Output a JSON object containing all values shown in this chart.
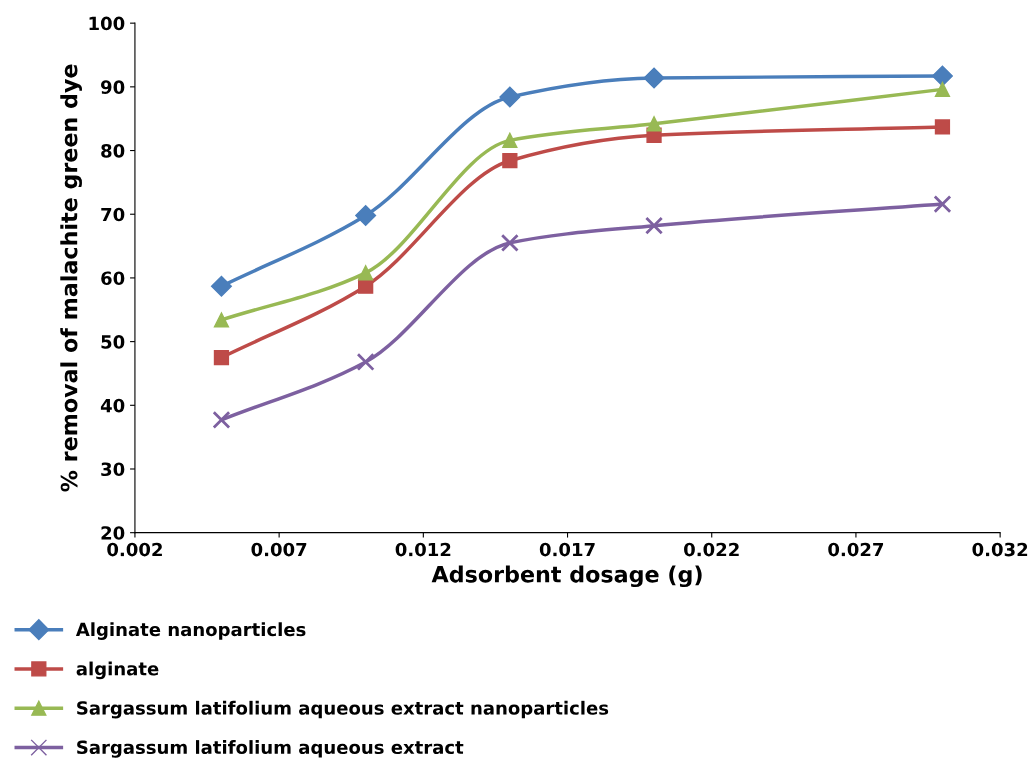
{
  "chart_data": {
    "type": "line",
    "xlabel": "Adsorbent dosage (g)",
    "ylabel": "% removal of malachite green dye",
    "x": [
      0.005,
      0.01,
      0.015,
      0.02,
      0.03
    ],
    "xlim": [
      0.002,
      0.032
    ],
    "xticks": [
      {
        "value": 0.002,
        "label": "0.002"
      },
      {
        "value": 0.007,
        "label": "0.007"
      },
      {
        "value": 0.012,
        "label": "0.012"
      },
      {
        "value": 0.017,
        "label": "0.017"
      },
      {
        "value": 0.022,
        "label": "0.022"
      },
      {
        "value": 0.027,
        "label": "0.027"
      },
      {
        "value": 0.032,
        "label": "0.032"
      }
    ],
    "ylim": [
      20,
      100
    ],
    "yticks": [
      20,
      30,
      40,
      50,
      60,
      70,
      80,
      90,
      100
    ],
    "legend": "bottom",
    "grid": false,
    "series": [
      {
        "name": "Alginate nanoparticles",
        "color": "#4a7ebb",
        "marker": "diamond",
        "values": [
          58.7,
          69.8,
          88.4,
          91.4,
          91.7
        ]
      },
      {
        "name": "alginate",
        "color": "#be4b48",
        "marker": "square",
        "values": [
          47.5,
          58.7,
          78.4,
          82.4,
          83.7
        ]
      },
      {
        "name": "Sargassum latifolium aqueous extract nanoparticles",
        "color": "#98b954",
        "marker": "triangle",
        "values": [
          53.4,
          60.8,
          81.6,
          84.2,
          89.6
        ]
      },
      {
        "name": "Sargassum latifolium aqueous extract",
        "color": "#7d60a0",
        "marker": "cross",
        "values": [
          37.7,
          46.8,
          65.5,
          68.2,
          71.6
        ]
      }
    ]
  }
}
